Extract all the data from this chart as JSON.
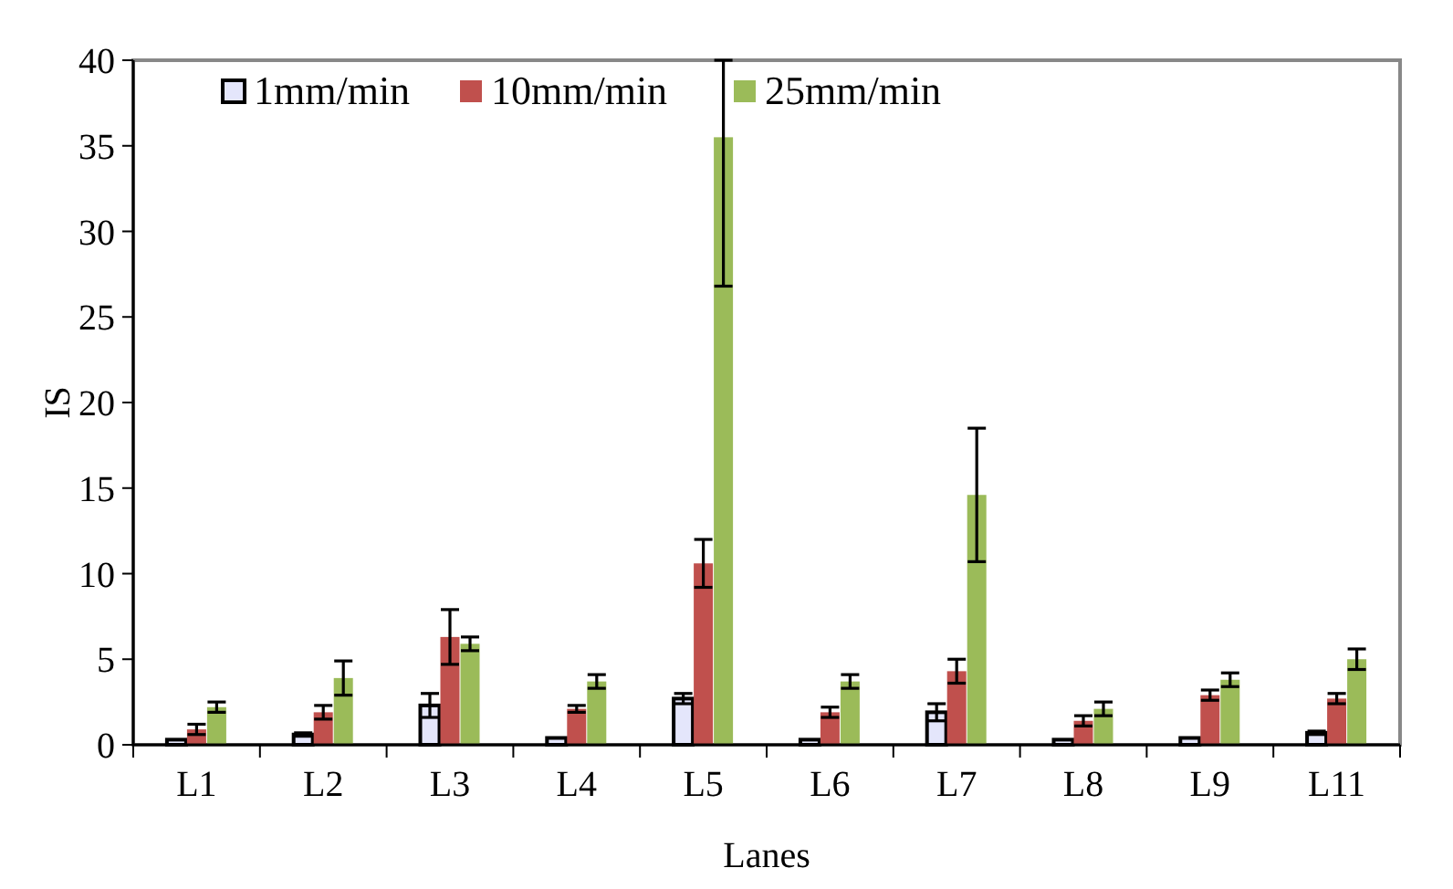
{
  "chart_data": {
    "type": "bar",
    "xlabel": "Lanes",
    "ylabel": "IS",
    "categories": [
      "L1",
      "L2",
      "L3",
      "L4",
      "L5",
      "L6",
      "L7",
      "L8",
      "L9",
      "L11"
    ],
    "series": [
      {
        "name": "1mm/min",
        "color": "#e4e6fb",
        "values": [
          0.3,
          0.6,
          2.3,
          0.4,
          2.7,
          0.3,
          1.9,
          0.3,
          0.4,
          0.7
        ],
        "errors": [
          null,
          0.1,
          0.7,
          null,
          0.3,
          null,
          0.5,
          null,
          null,
          0.1
        ]
      },
      {
        "name": "10mm/min",
        "color": "#c0504d",
        "values": [
          0.9,
          1.9,
          6.3,
          2.1,
          10.6,
          1.9,
          4.3,
          1.4,
          2.9,
          2.7
        ],
        "errors": [
          0.3,
          0.4,
          1.6,
          0.2,
          1.4,
          0.3,
          0.7,
          0.3,
          0.3,
          0.3
        ]
      },
      {
        "name": "25mm/min",
        "color": "#9bbb59",
        "values": [
          2.2,
          3.9,
          5.9,
          3.7,
          35.5,
          3.7,
          14.6,
          2.1,
          3.8,
          5.0
        ],
        "errors": [
          0.3,
          1.0,
          0.4,
          0.4,
          [
            26.8,
            40
          ],
          0.4,
          3.9,
          0.4,
          0.4,
          0.6
        ]
      }
    ],
    "ylim": [
      0,
      40
    ],
    "yticks": [
      0,
      5,
      10,
      15,
      20,
      25,
      30,
      35,
      40
    ],
    "grid": false,
    "legend": "top"
  }
}
